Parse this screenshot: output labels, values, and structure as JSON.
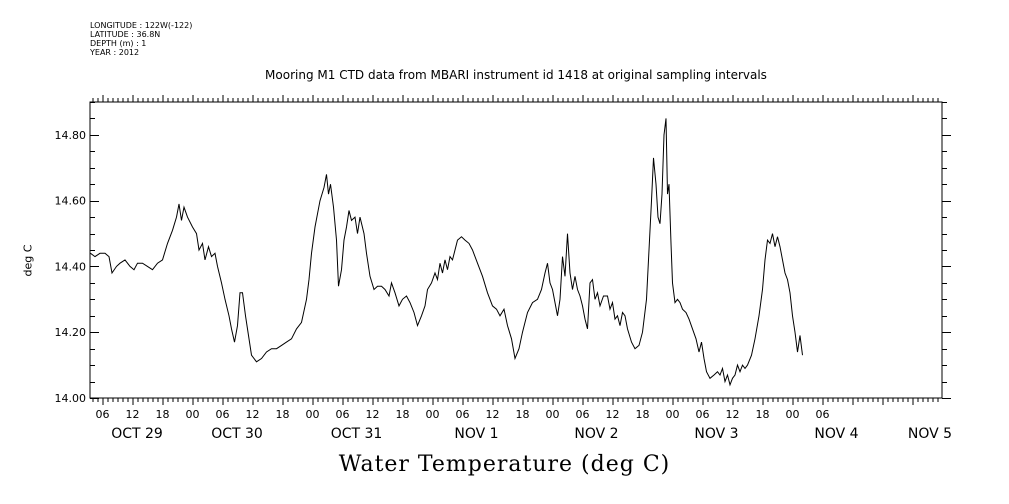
{
  "header": {
    "longitude": "LONGITUDE : 122W(-122)",
    "latitude": "LATITUDE : 36.8N",
    "depth": "DEPTH (m) : 1",
    "year": "YEAR : 2012"
  },
  "chart_data": {
    "type": "line",
    "title": "Mooring M1 CTD data from MBARI instrument id 1418 at original sampling intervals",
    "xlabel": "Water Temperature (deg C)",
    "ylabel": "deg C",
    "ylim": [
      14.0,
      14.9
    ],
    "yticks": [
      14.0,
      14.2,
      14.4,
      14.6,
      14.8
    ],
    "ytick_labels": [
      "14.00",
      "14.20",
      "14.40",
      "14.60",
      "14.80"
    ],
    "x_unit": "hours since OCT 29 00:00",
    "xlim": [
      3.5,
      147
    ],
    "hour_ticks": [
      {
        "t": 6,
        "label": "06"
      },
      {
        "t": 12,
        "label": "12"
      },
      {
        "t": 18,
        "label": "18"
      },
      {
        "t": 24,
        "label": "00"
      },
      {
        "t": 30,
        "label": "06"
      },
      {
        "t": 36,
        "label": "12"
      },
      {
        "t": 42,
        "label": "18"
      },
      {
        "t": 48,
        "label": "00"
      },
      {
        "t": 54,
        "label": "06"
      },
      {
        "t": 60,
        "label": "12"
      },
      {
        "t": 66,
        "label": "18"
      },
      {
        "t": 72,
        "label": "00"
      },
      {
        "t": 78,
        "label": "06"
      },
      {
        "t": 84,
        "label": "12"
      },
      {
        "t": 90,
        "label": "18"
      },
      {
        "t": 96,
        "label": "00"
      },
      {
        "t": 102,
        "label": "06"
      },
      {
        "t": 108,
        "label": "12"
      },
      {
        "t": 114,
        "label": "18"
      },
      {
        "t": 120,
        "label": "00"
      },
      {
        "t": 126,
        "label": "06"
      },
      {
        "t": 132,
        "label": "12"
      },
      {
        "t": 138,
        "label": "18"
      },
      {
        "t": 144,
        "label": "00"
      },
      {
        "t": 150,
        "label": "06"
      }
    ],
    "day_labels": [
      {
        "t": 12,
        "label": "OCT 29"
      },
      {
        "t": 36,
        "label": "OCT 30"
      },
      {
        "t": 60,
        "label": "OCT 31"
      },
      {
        "t": 84,
        "label": "NOV  1"
      },
      {
        "t": 108,
        "label": "NOV  2"
      },
      {
        "t": 132,
        "label": "NOV  3"
      },
      {
        "t": 156,
        "label": "NOV  4"
      },
      {
        "t": 168,
        "label": "NOV  5"
      }
    ],
    "series": [
      {
        "color": "#000000",
        "points": [
          [
            3.6,
            14.44
          ],
          [
            4.5,
            14.43
          ],
          [
            5.5,
            14.44
          ],
          [
            6.5,
            14.44
          ],
          [
            7.3,
            14.43
          ],
          [
            7.9,
            14.38
          ],
          [
            8.8,
            14.4
          ],
          [
            9.5,
            14.41
          ],
          [
            10.5,
            14.42
          ],
          [
            11.5,
            14.4
          ],
          [
            12.3,
            14.39
          ],
          [
            13.0,
            14.41
          ],
          [
            14.0,
            14.41
          ],
          [
            15.0,
            14.4
          ],
          [
            16.0,
            14.39
          ],
          [
            17.0,
            14.41
          ],
          [
            18.0,
            14.42
          ],
          [
            19.0,
            14.47
          ],
          [
            20.0,
            14.51
          ],
          [
            20.8,
            14.55
          ],
          [
            21.3,
            14.59
          ],
          [
            21.8,
            14.54
          ],
          [
            22.3,
            14.58
          ],
          [
            23.0,
            14.55
          ],
          [
            24.0,
            14.52
          ],
          [
            24.8,
            14.5
          ],
          [
            25.3,
            14.45
          ],
          [
            26.0,
            14.47
          ],
          [
            26.5,
            14.42
          ],
          [
            27.2,
            14.46
          ],
          [
            27.8,
            14.43
          ],
          [
            28.5,
            14.44
          ],
          [
            29.0,
            14.4
          ],
          [
            29.8,
            14.35
          ],
          [
            30.5,
            14.3
          ],
          [
            31.3,
            14.25
          ],
          [
            31.8,
            14.21
          ],
          [
            32.4,
            14.17
          ],
          [
            33.0,
            14.22
          ],
          [
            33.5,
            14.32
          ],
          [
            34.0,
            14.32
          ],
          [
            34.6,
            14.25
          ],
          [
            35.2,
            14.19
          ],
          [
            35.8,
            14.13
          ],
          [
            36.8,
            14.11
          ],
          [
            37.8,
            14.12
          ],
          [
            38.8,
            14.14
          ],
          [
            39.8,
            14.15
          ],
          [
            40.8,
            14.15
          ],
          [
            41.8,
            14.16
          ],
          [
            42.8,
            14.17
          ],
          [
            43.8,
            14.18
          ],
          [
            44.8,
            14.21
          ],
          [
            45.8,
            14.23
          ],
          [
            46.8,
            14.3
          ],
          [
            47.3,
            14.36
          ],
          [
            47.8,
            14.44
          ],
          [
            48.5,
            14.52
          ],
          [
            49.0,
            14.56
          ],
          [
            49.5,
            14.6
          ],
          [
            50.3,
            14.64
          ],
          [
            50.8,
            14.68
          ],
          [
            51.2,
            14.62
          ],
          [
            51.6,
            14.65
          ],
          [
            52.2,
            14.58
          ],
          [
            52.8,
            14.48
          ],
          [
            53.2,
            14.34
          ],
          [
            53.8,
            14.39
          ],
          [
            54.3,
            14.48
          ],
          [
            54.8,
            14.52
          ],
          [
            55.3,
            14.57
          ],
          [
            55.8,
            14.54
          ],
          [
            56.5,
            14.55
          ],
          [
            57.0,
            14.5
          ],
          [
            57.5,
            14.55
          ],
          [
            58.3,
            14.5
          ],
          [
            58.8,
            14.44
          ],
          [
            59.5,
            14.37
          ],
          [
            60.3,
            14.33
          ],
          [
            61.0,
            14.34
          ],
          [
            61.8,
            14.34
          ],
          [
            62.5,
            14.33
          ],
          [
            63.3,
            14.31
          ],
          [
            63.8,
            14.35
          ],
          [
            64.5,
            14.32
          ],
          [
            65.3,
            14.28
          ],
          [
            66.0,
            14.3
          ],
          [
            66.8,
            14.31
          ],
          [
            67.5,
            14.29
          ],
          [
            68.3,
            14.26
          ],
          [
            69.0,
            14.22
          ],
          [
            69.8,
            14.25
          ],
          [
            70.5,
            14.28
          ],
          [
            71.0,
            14.33
          ],
          [
            71.8,
            14.35
          ],
          [
            72.5,
            14.38
          ],
          [
            73.0,
            14.36
          ],
          [
            73.5,
            14.41
          ],
          [
            74.0,
            14.38
          ],
          [
            74.5,
            14.42
          ],
          [
            75.0,
            14.39
          ],
          [
            75.5,
            14.43
          ],
          [
            76.0,
            14.42
          ],
          [
            76.5,
            14.45
          ],
          [
            77.0,
            14.48
          ],
          [
            77.8,
            14.49
          ],
          [
            78.5,
            14.48
          ],
          [
            79.3,
            14.47
          ],
          [
            80.0,
            14.45
          ],
          [
            81.0,
            14.41
          ],
          [
            82.0,
            14.37
          ],
          [
            83.0,
            14.32
          ],
          [
            84.0,
            14.28
          ],
          [
            84.8,
            14.27
          ],
          [
            85.5,
            14.25
          ],
          [
            86.3,
            14.27
          ],
          [
            87.0,
            14.22
          ],
          [
            87.8,
            14.18
          ],
          [
            88.5,
            14.12
          ],
          [
            89.3,
            14.15
          ],
          [
            90.0,
            14.2
          ],
          [
            91.0,
            14.26
          ],
          [
            92.0,
            14.29
          ],
          [
            93.0,
            14.3
          ],
          [
            93.8,
            14.33
          ],
          [
            94.5,
            14.38
          ],
          [
            95.0,
            14.41
          ],
          [
            95.5,
            14.35
          ],
          [
            96.0,
            14.33
          ],
          [
            96.5,
            14.29
          ],
          [
            97.0,
            14.25
          ],
          [
            97.5,
            14.3
          ],
          [
            98.0,
            14.43
          ],
          [
            98.5,
            14.37
          ],
          [
            99.0,
            14.5
          ],
          [
            99.5,
            14.38
          ],
          [
            100.0,
            14.33
          ],
          [
            100.5,
            14.37
          ],
          [
            101.0,
            14.33
          ],
          [
            101.5,
            14.31
          ],
          [
            102.0,
            14.28
          ],
          [
            102.5,
            14.24
          ],
          [
            103.0,
            14.21
          ],
          [
            103.5,
            14.35
          ],
          [
            104.0,
            14.36
          ],
          [
            104.5,
            14.3
          ],
          [
            105.0,
            14.32
          ],
          [
            105.5,
            14.28
          ],
          [
            106.2,
            14.31
          ],
          [
            107.0,
            14.31
          ],
          [
            107.5,
            14.27
          ],
          [
            108.0,
            14.29
          ],
          [
            108.5,
            14.24
          ],
          [
            109.0,
            14.25
          ],
          [
            109.5,
            14.22
          ],
          [
            110.0,
            14.26
          ],
          [
            110.5,
            14.25
          ],
          [
            111.0,
            14.21
          ],
          [
            111.8,
            14.17
          ],
          [
            112.5,
            14.15
          ],
          [
            113.3,
            14.16
          ],
          [
            114.0,
            14.2
          ],
          [
            114.8,
            14.3
          ],
          [
            115.3,
            14.45
          ],
          [
            115.8,
            14.6
          ],
          [
            116.2,
            14.73
          ],
          [
            116.7,
            14.65
          ],
          [
            117.1,
            14.55
          ],
          [
            117.5,
            14.53
          ],
          [
            117.9,
            14.62
          ],
          [
            118.3,
            14.8
          ],
          [
            118.7,
            14.85
          ],
          [
            119.0,
            14.62
          ],
          [
            119.3,
            14.65
          ],
          [
            119.7,
            14.47
          ],
          [
            120.0,
            14.35
          ],
          [
            120.5,
            14.29
          ],
          [
            121.0,
            14.3
          ],
          [
            121.5,
            14.29
          ],
          [
            122.0,
            14.27
          ],
          [
            122.7,
            14.26
          ],
          [
            123.3,
            14.24
          ],
          [
            124.0,
            14.21
          ],
          [
            124.7,
            14.18
          ],
          [
            125.3,
            14.14
          ],
          [
            125.8,
            14.17
          ],
          [
            126.3,
            14.12
          ],
          [
            126.8,
            14.08
          ],
          [
            127.5,
            14.06
          ],
          [
            128.3,
            14.07
          ],
          [
            129.0,
            14.08
          ],
          [
            129.5,
            14.07
          ],
          [
            130.0,
            14.09
          ],
          [
            130.5,
            14.05
          ],
          [
            131.0,
            14.07
          ],
          [
            131.5,
            14.04
          ],
          [
            132.0,
            14.06
          ],
          [
            132.5,
            14.07
          ],
          [
            133.0,
            14.1
          ],
          [
            133.5,
            14.08
          ],
          [
            134.0,
            14.1
          ],
          [
            134.5,
            14.09
          ],
          [
            135.0,
            14.1
          ],
          [
            135.8,
            14.13
          ],
          [
            136.5,
            14.18
          ],
          [
            137.3,
            14.25
          ],
          [
            138.0,
            14.33
          ],
          [
            138.5,
            14.42
          ],
          [
            139.0,
            14.48
          ],
          [
            139.5,
            14.47
          ],
          [
            140.0,
            14.5
          ],
          [
            140.5,
            14.46
          ],
          [
            141.0,
            14.49
          ],
          [
            141.5,
            14.46
          ],
          [
            142.0,
            14.42
          ],
          [
            142.5,
            14.38
          ],
          [
            143.0,
            14.36
          ],
          [
            143.5,
            14.32
          ],
          [
            144.0,
            14.25
          ],
          [
            144.5,
            14.2
          ],
          [
            145.0,
            14.14
          ],
          [
            145.5,
            14.19
          ],
          [
            146.0,
            14.13
          ]
        ]
      }
    ],
    "series_extra_note": "",
    "grid": false
  }
}
